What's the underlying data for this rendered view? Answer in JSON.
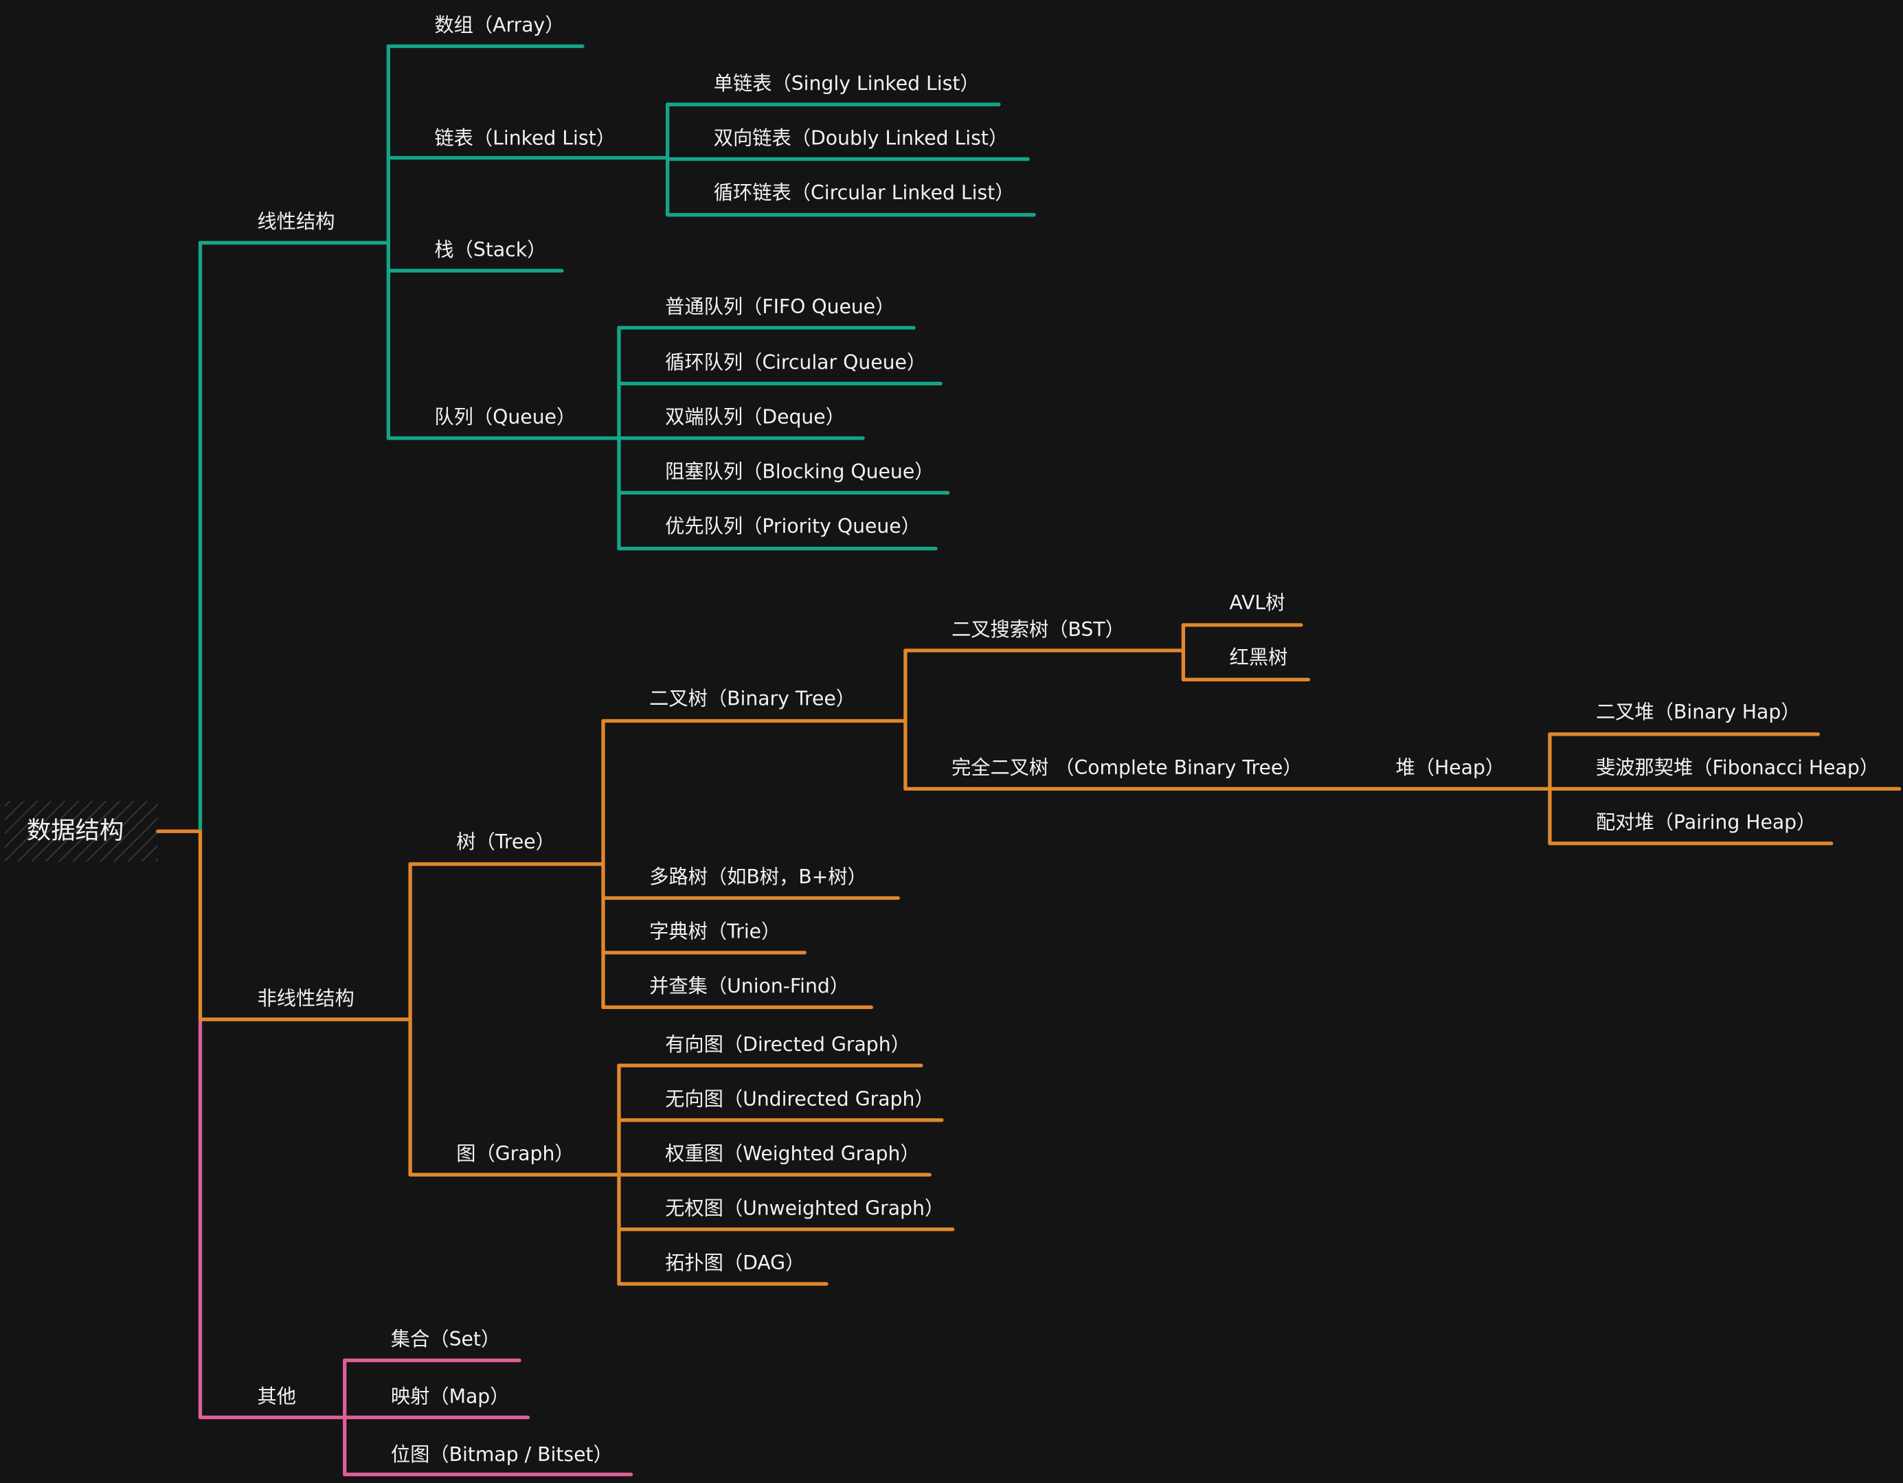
{
  "colors": {
    "background": "#141414",
    "linear": "#13a689",
    "nonlinear": "#e0882c",
    "other": "#de5f9a",
    "text": "#f2f2f2"
  },
  "mindmap": {
    "root": "数据结构",
    "linear": {
      "label": "线性结构",
      "items": [
        "数组（Array）",
        "链表（Linked List）",
        "栈（Stack）",
        "队列（Queue）"
      ],
      "linked_list": [
        "单链表（Singly Linked List）",
        "双向链表（Doubly Linked List）",
        "循环链表（Circular Linked List）"
      ],
      "queue": [
        "普通队列（FIFO Queue）",
        "循环队列（Circular Queue）",
        "双端队列（Deque）",
        "阻塞队列（Blocking Queue）",
        "优先队列（Priority Queue）"
      ]
    },
    "nonlinear": {
      "label": "非线性结构",
      "tree": {
        "label": "树（Tree）",
        "binary_tree": "二叉树（Binary Tree）",
        "bst": "二叉搜索树（BST）",
        "bst_children": [
          "AVL树",
          "红黑树"
        ],
        "complete": "完全二叉树 （Complete Binary Tree）",
        "heap": "堆（Heap）",
        "heap_children": [
          "二叉堆（Binary Hap）",
          "斐波那契堆（Fibonacci Heap）",
          "配对堆（Pairing Heap）"
        ],
        "others": [
          "多路树（如B树，B+树）",
          "字典树（Trie）",
          "并查集（Union-Find）"
        ]
      },
      "graph": {
        "label": "图（Graph）",
        "items": [
          "有向图（Directed Graph）",
          "无向图（Undirected Graph）",
          "权重图（Weighted Graph）",
          "无权图（Unweighted Graph）",
          "拓扑图（DAG）"
        ]
      }
    },
    "other": {
      "label": "其他",
      "items": [
        "集合（Set）",
        "映射（Map）",
        "位图（Bitmap / Bitset）"
      ]
    }
  }
}
